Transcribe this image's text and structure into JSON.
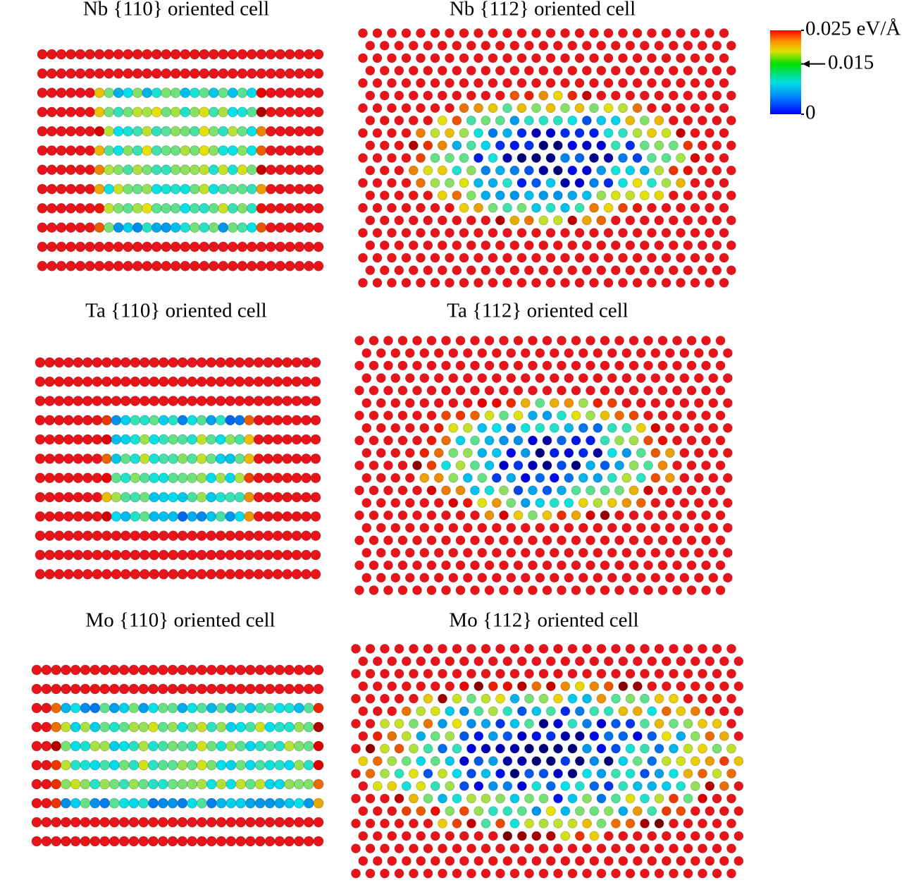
{
  "panels": [
    {
      "title": "Nb {110} oriented cell"
    },
    {
      "title": "Nb {112} oriented cell"
    },
    {
      "title": "Ta {110} oriented cell"
    },
    {
      "title": "Ta {112} oriented cell"
    },
    {
      "title": "Mo {110} oriented cell"
    },
    {
      "title": "Mo {112} oriented cell"
    }
  ],
  "colorbar": {
    "range": [
      0,
      0.025
    ],
    "ticks": [
      {
        "value": 0.025,
        "label": "0.025 eV/Å"
      },
      {
        "value": 0.015,
        "label": "0.015"
      },
      0
    ]
  }
}
